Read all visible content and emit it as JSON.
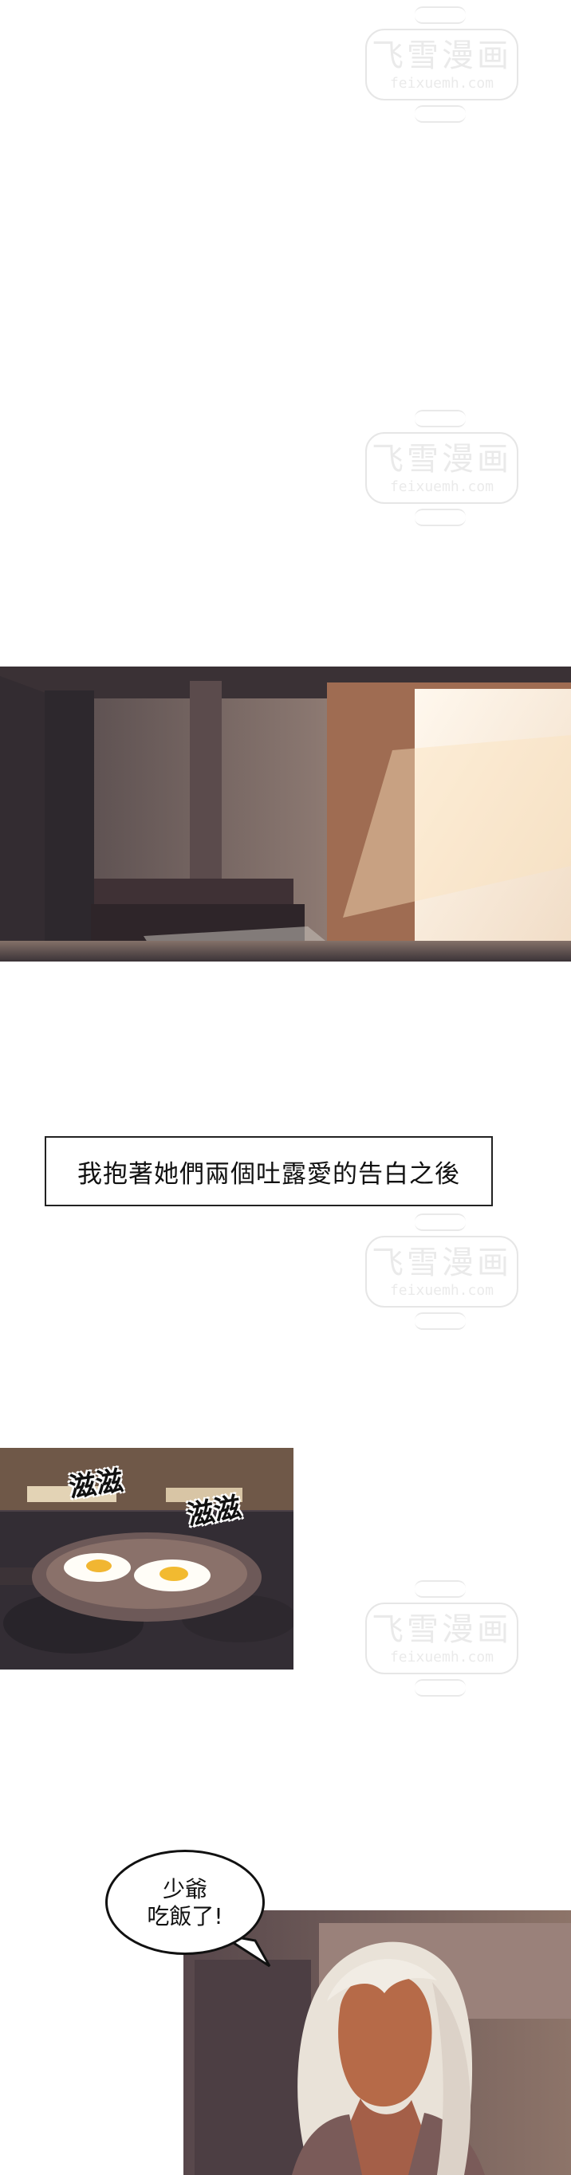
{
  "watermark": {
    "title": "飞雪漫画",
    "site": "feixuemh.com"
  },
  "narration": {
    "caption": "我抱著她們兩個吐露愛的告白之後"
  },
  "speech": {
    "line1": "少爺",
    "line2": "吃飯了!"
  },
  "sound_effects": {
    "sizzle_1": "滋滋",
    "sizzle_2": "滋滋"
  },
  "colors": {
    "page_background": "#ffffff",
    "room_tone": "#6f6260",
    "window_light": "#f8e8d5",
    "stove_top": "#53474f",
    "pan": "#7a6561",
    "hair": "#e9e2d8",
    "skin": "#b66a48"
  }
}
